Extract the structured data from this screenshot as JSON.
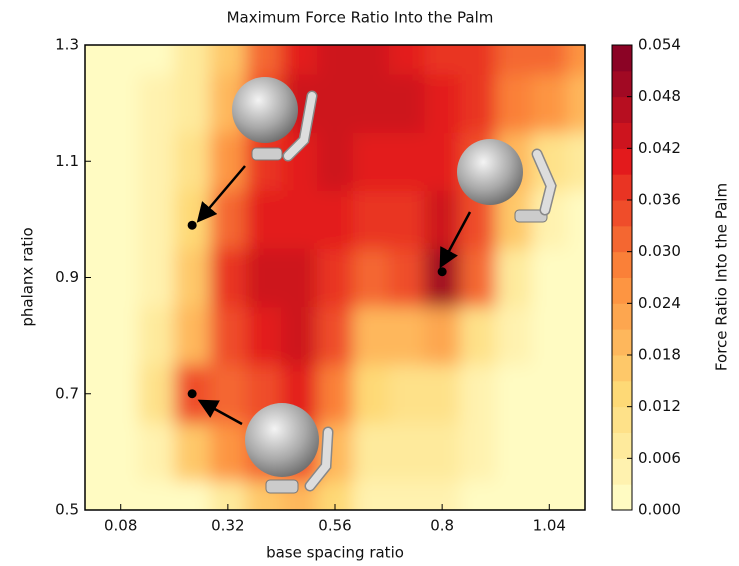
{
  "chart_data": {
    "type": "contour",
    "title": "Maximum Force Ratio Into the Palm",
    "x_label": "base spacing ratio",
    "y_label": "phalanx ratio",
    "colorbar_label": "Force Ratio Into the Palm",
    "x": [
      0,
      0.08,
      0.16,
      0.24,
      0.32,
      0.4,
      0.48,
      0.56,
      0.64,
      0.72,
      0.8,
      0.88,
      0.96,
      1.04,
      1.12
    ],
    "y": [
      0.5,
      0.6,
      0.7,
      0.8,
      0.9,
      1.0,
      1.1,
      1.2,
      1.3
    ],
    "z": [
      [
        0,
        0,
        0,
        0.002,
        0.008,
        0.015,
        0.02,
        0.012,
        0.005,
        0.003,
        0.004,
        0.002,
        0,
        0,
        0
      ],
      [
        0,
        0,
        0.004,
        0.015,
        0.025,
        0.03,
        0.035,
        0.02,
        0.008,
        0.006,
        0.006,
        0.003,
        0.001,
        0,
        0
      ],
      [
        0,
        0,
        0.01,
        0.035,
        0.03,
        0.035,
        0.04,
        0.028,
        0.012,
        0.01,
        0.01,
        0.004,
        0.002,
        0,
        0
      ],
      [
        0,
        0,
        0.006,
        0.02,
        0.035,
        0.04,
        0.042,
        0.035,
        0.02,
        0.018,
        0.022,
        0.01,
        0.003,
        0.001,
        0
      ],
      [
        0,
        0,
        0.004,
        0.015,
        0.036,
        0.045,
        0.042,
        0.038,
        0.03,
        0.035,
        0.05,
        0.03,
        0.008,
        0.002,
        0
      ],
      [
        0,
        0.001,
        0.005,
        0.012,
        0.03,
        0.04,
        0.04,
        0.04,
        0.036,
        0.038,
        0.042,
        0.035,
        0.015,
        0.005,
        0.002
      ],
      [
        0,
        0.001,
        0.004,
        0.01,
        0.026,
        0.038,
        0.04,
        0.042,
        0.04,
        0.04,
        0.04,
        0.035,
        0.02,
        0.01,
        0.006
      ],
      [
        0,
        0,
        0.003,
        0.008,
        0.02,
        0.035,
        0.042,
        0.045,
        0.045,
        0.042,
        0.04,
        0.036,
        0.028,
        0.025,
        0.02
      ],
      [
        0,
        0,
        0.002,
        0.006,
        0.015,
        0.03,
        0.04,
        0.045,
        0.042,
        0.04,
        0.038,
        0.036,
        0.03,
        0.03,
        0.025
      ]
    ],
    "xlim": [
      0,
      1.12
    ],
    "xticks": [
      0.08,
      0.32,
      0.56,
      0.8,
      1.04
    ],
    "ylim": [
      0.5,
      1.3
    ],
    "yticks": [
      0.5,
      0.7,
      0.9,
      1.1,
      1.3
    ],
    "clim": [
      0,
      0.054
    ],
    "cticks": [
      0.0,
      0.006,
      0.012,
      0.018,
      0.024,
      0.03,
      0.036,
      0.042,
      0.048,
      0.054
    ],
    "levels": 18,
    "colormap": [
      "#ffffcc",
      "#fed976",
      "#fd8d3c",
      "#e31a1c",
      "#800026"
    ],
    "markers": {
      "x": [
        0.24,
        0.24,
        0.8
      ],
      "y": [
        0.99,
        0.7,
        0.91
      ],
      "color": "#000000"
    }
  }
}
